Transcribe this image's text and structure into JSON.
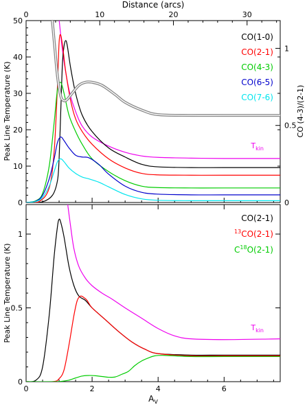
{
  "chart_data": [
    {
      "type": "line",
      "panel": "top",
      "top_axis_label": "Distance (arcs)",
      "top_axis_ticks": [
        "0",
        "10",
        "20",
        "30"
      ],
      "top_axis_range": [
        0,
        34.5
      ],
      "ylabel": "Peak Line Temperature (K)",
      "y_ticks": [
        "0",
        "10",
        "20",
        "30",
        "40",
        "50"
      ],
      "ylim": [
        0,
        50
      ],
      "right_axis_label": "CO (4-3)/(2-1)",
      "right_axis_ticks": [
        "0",
        "0.5",
        "1"
      ],
      "right_axis_range": [
        0,
        1.18
      ],
      "xlim": [
        0,
        7.7
      ],
      "annotation_tkin": "Tkin",
      "legend": [
        {
          "label": "CO(1-0)",
          "color": "#000000"
        },
        {
          "label": "CO(2-1)",
          "color": "#ff0000"
        },
        {
          "label": "CO(4-3)",
          "color": "#00cc00"
        },
        {
          "label": "CO(6-5)",
          "color": "#0000cc"
        },
        {
          "label": "CO(7-6)",
          "color": "#00e5ee"
        }
      ],
      "series": [
        {
          "name": "Tkin",
          "color": "#ee00ee",
          "axis": "left",
          "x": [
            0.95,
            1.1,
            1.3,
            1.5,
            1.7,
            2.0,
            2.5,
            3.0,
            3.5,
            4.0,
            5.0,
            6.0,
            7.7
          ],
          "y": [
            55,
            42,
            31,
            25,
            21,
            18,
            15.5,
            13.8,
            12.8,
            12.4,
            12.2,
            12.1,
            12.1
          ]
        },
        {
          "name": "CO(1-0)",
          "color": "#000000",
          "axis": "left",
          "x": [
            0,
            0.5,
            0.8,
            0.95,
            1.0,
            1.05,
            1.1,
            1.15,
            1.2,
            1.25,
            1.35,
            1.5,
            1.7,
            2.0,
            2.5,
            3.0,
            3.5,
            4.0,
            5.0,
            6.0,
            7.7
          ],
          "y": [
            0,
            0.2,
            2,
            6,
            12,
            25,
            38,
            43,
            44.5,
            43,
            37,
            30,
            24,
            19.5,
            15,
            12.5,
            10.5,
            9.8,
            9.6,
            9.6,
            9.6
          ]
        },
        {
          "name": "CO(2-1)",
          "color": "#ff0000",
          "axis": "left",
          "x": [
            0,
            0.4,
            0.7,
            0.85,
            0.95,
            1.0,
            1.05,
            1.12,
            1.2,
            1.35,
            1.5,
            1.7,
            2.0,
            2.5,
            3.0,
            3.5,
            4.0,
            5.0,
            6.0,
            7.7
          ],
          "y": [
            0,
            0.3,
            4,
            14,
            32,
            44,
            46,
            42,
            36,
            28,
            23,
            19.5,
            16,
            12,
            9.5,
            8,
            7.6,
            7.5,
            7.5,
            7.5
          ]
        },
        {
          "name": "CO(4-3)",
          "color": "#00cc00",
          "axis": "left",
          "x": [
            0,
            0.3,
            0.5,
            0.7,
            0.85,
            0.95,
            1.05,
            1.15,
            1.3,
            1.5,
            1.7,
            2.0,
            2.5,
            3.0,
            3.5,
            4.0,
            5.0,
            6.0,
            7.7
          ],
          "y": [
            0,
            0.5,
            2.5,
            10,
            22,
            31,
            33,
            30,
            24,
            19.5,
            16,
            12,
            8.5,
            6,
            4.5,
            4.1,
            4.0,
            4.0,
            4.0
          ]
        },
        {
          "name": "CO(6-5)",
          "color": "#0000cc",
          "axis": "left",
          "x": [
            0,
            0.3,
            0.5,
            0.7,
            0.85,
            0.95,
            1.05,
            1.15,
            1.3,
            1.5,
            1.7,
            1.9,
            2.2,
            2.5,
            3.0,
            3.5,
            4.0,
            5.0,
            6.0,
            7.7
          ],
          "y": [
            0,
            0.4,
            2.0,
            6.5,
            12,
            16.5,
            18,
            17,
            15,
            13,
            12.5,
            12.3,
            10.5,
            7.8,
            4.5,
            2.8,
            2.3,
            2.1,
            2.1,
            2.1
          ]
        },
        {
          "name": "CO(7-6)",
          "color": "#00e5ee",
          "axis": "left",
          "x": [
            0,
            0.3,
            0.5,
            0.7,
            0.85,
            0.95,
            1.05,
            1.15,
            1.3,
            1.5,
            1.7,
            1.9,
            2.2,
            2.5,
            3.0,
            3.5,
            4.0,
            5.0,
            6.0,
            7.7
          ],
          "y": [
            0,
            0.3,
            1.4,
            4.5,
            8.5,
            11.2,
            12,
            11.2,
            9.5,
            8,
            7,
            6.5,
            5.6,
            4.3,
            2.2,
            1.0,
            0.6,
            0.5,
            0.5,
            0.5
          ]
        },
        {
          "name": "CO (4-3)/(2-1)",
          "color": "#888888",
          "axis": "right",
          "x": [
            0.75,
            0.85,
            0.95,
            1.05,
            1.15,
            1.25,
            1.4,
            1.6,
            1.8,
            2.0,
            2.3,
            2.7,
            3.0,
            3.5,
            4.0,
            5.0,
            6.0,
            7.7
          ],
          "y": [
            1.28,
            1.05,
            0.82,
            0.69,
            0.66,
            0.67,
            0.71,
            0.76,
            0.78,
            0.78,
            0.76,
            0.7,
            0.65,
            0.6,
            0.57,
            0.565,
            0.565,
            0.565
          ]
        }
      ]
    },
    {
      "type": "line",
      "panel": "bottom",
      "xlabel": "AV",
      "xlabel_main": "A",
      "xlabel_sub": "V",
      "x_ticks": [
        "0",
        "2",
        "4",
        "6"
      ],
      "xlim": [
        0,
        7.7
      ],
      "ylabel": "Peak Line Temperature (K)",
      "y_ticks": [
        "0",
        "0.5",
        "1"
      ],
      "ylim": [
        0,
        1.2
      ],
      "annotation_tkin": "Tkin",
      "legend": [
        {
          "label": "CO(2-1)",
          "color": "#000000",
          "sup": "",
          "pre": "",
          "post": "CO(2-1)"
        },
        {
          "label": "13CO(2-1)",
          "color": "#ff0000",
          "sup": "13",
          "pre": "",
          "post": "CO(2-1)"
        },
        {
          "label": "C18O(2-1)",
          "color": "#00cc00",
          "sup": "18",
          "pre": "C",
          "post": "O(2-1)"
        }
      ],
      "series": [
        {
          "name": "Tkin",
          "color": "#ee00ee",
          "x": [
            1.25,
            1.35,
            1.45,
            1.6,
            1.8,
            2.0,
            2.3,
            2.6,
            3.0,
            3.5,
            4.0,
            4.5,
            5.0,
            6.0,
            7.7
          ],
          "y": [
            1.22,
            1.05,
            0.9,
            0.78,
            0.7,
            0.65,
            0.6,
            0.56,
            0.5,
            0.43,
            0.36,
            0.31,
            0.29,
            0.285,
            0.29
          ]
        },
        {
          "name": "CO(2-1)",
          "color": "#000000",
          "x": [
            0,
            0.3,
            0.5,
            0.7,
            0.85,
            0.95,
            1.0,
            1.05,
            1.15,
            1.3,
            1.45,
            1.6,
            1.8,
            2.0,
            2.4,
            2.8,
            3.2,
            3.6,
            4.0,
            5.0,
            6.0,
            7.7
          ],
          "y": [
            0,
            0.01,
            0.1,
            0.45,
            0.85,
            1.05,
            1.1,
            1.08,
            0.98,
            0.78,
            0.65,
            0.58,
            0.55,
            0.5,
            0.42,
            0.34,
            0.27,
            0.22,
            0.19,
            0.18,
            0.18,
            0.18
          ]
        },
        {
          "name": "13CO(2-1)",
          "color": "#ff0000",
          "x": [
            0,
            0.8,
            1.0,
            1.15,
            1.3,
            1.45,
            1.55,
            1.65,
            1.75,
            1.85,
            2.0,
            2.4,
            2.8,
            3.2,
            3.6,
            4.0,
            5.0,
            6.0,
            7.7
          ],
          "y": [
            0,
            0.0,
            0.02,
            0.08,
            0.25,
            0.45,
            0.55,
            0.58,
            0.57,
            0.55,
            0.5,
            0.42,
            0.34,
            0.27,
            0.22,
            0.19,
            0.175,
            0.175,
            0.175
          ]
        },
        {
          "name": "C18O(2-1)",
          "color": "#00cc00",
          "x": [
            0,
            0.9,
            1.1,
            1.3,
            1.5,
            1.7,
            1.9,
            2.1,
            2.3,
            2.5,
            2.7,
            2.9,
            3.1,
            3.3,
            3.5,
            3.7,
            3.9,
            4.2,
            5.0,
            6.0,
            7.7
          ],
          "y": [
            0,
            0.0,
            0.003,
            0.01,
            0.025,
            0.038,
            0.042,
            0.04,
            0.035,
            0.03,
            0.032,
            0.05,
            0.07,
            0.11,
            0.14,
            0.16,
            0.175,
            0.178,
            0.17,
            0.17,
            0.17
          ]
        }
      ]
    }
  ]
}
